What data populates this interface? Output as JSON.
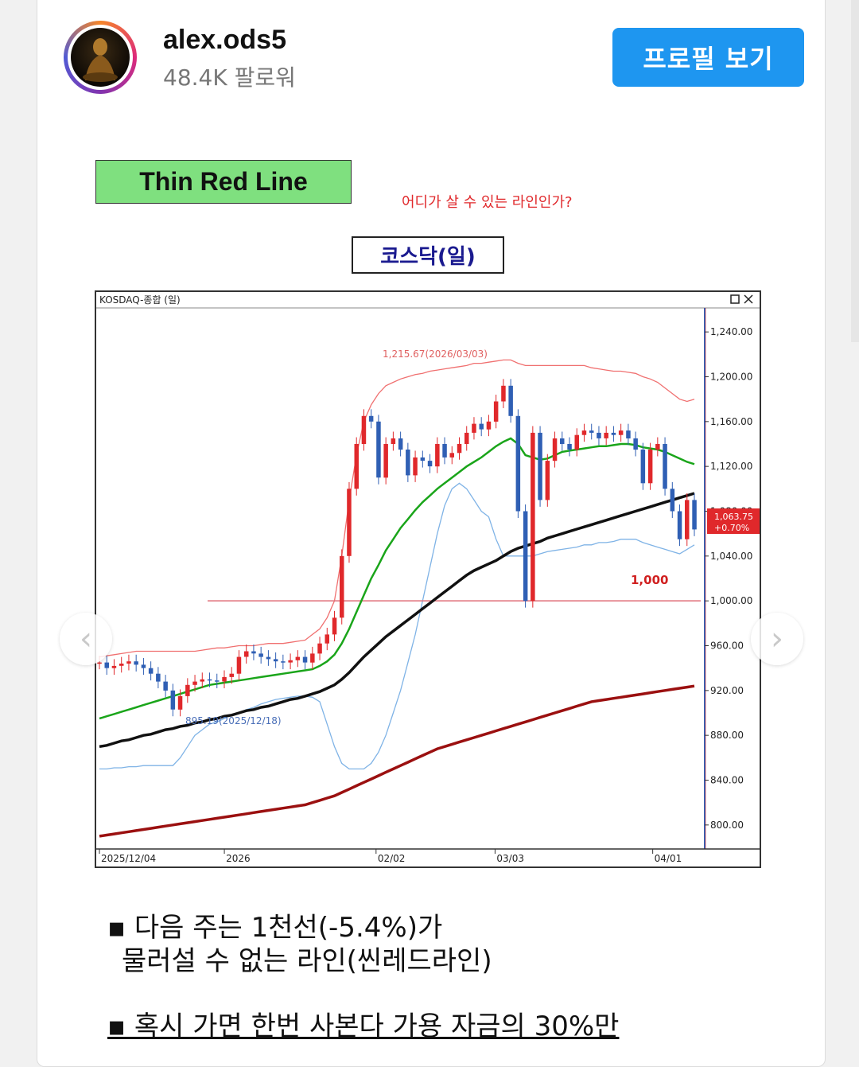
{
  "header": {
    "username": "alex.ods5",
    "followers": "48.4K 팔로워",
    "profile_button": "프로필 보기"
  },
  "post": {
    "title": "Thin Red Line",
    "question": "어디가 살 수 있는 라인인가?",
    "chart_label": "코스닥(일)",
    "bullet1_line1": "▪ 다음 주는 1천선(-5.4%)가",
    "bullet1_line2": "물러설 수 없는 라인(씬레드라인)",
    "bullet2": "▪ 혹시 가면 한번 사본다 가용 자금의 30%만"
  },
  "icons": {
    "prev": "chevron-left-icon",
    "next": "chevron-right-icon",
    "maximize": "maximize-icon",
    "close": "close-icon"
  },
  "chart_data": {
    "type": "line",
    "title": "KOSDAQ-종합 (일)",
    "x_ticks": [
      "2025/12/04",
      "2026",
      "02/02",
      "03/03",
      "04/01"
    ],
    "y_ticks": [
      "1,240.00",
      "1,200.00",
      "1,160.00",
      "1,120.00",
      "1,080.00",
      "1,040.00",
      "1,000.00",
      "960.00",
      "920.00",
      "880.00",
      "840.00",
      "800.00"
    ],
    "ylim": [
      780,
      1260
    ],
    "annotations": {
      "high": "1,215.67(2026/03/03)",
      "low": "895.19(2025/12/18)",
      "level_label": "1,000",
      "last_price": "1,063.75",
      "last_change": "+0.70%"
    },
    "level": 1000,
    "colors": {
      "up": "#e0282b",
      "down": "#2f5fb4",
      "ma20": "#1aa51a",
      "ma60": "#111111",
      "ma120": "#9b1010",
      "bb": "#7fb3e6",
      "bb_upper": "#f07070"
    },
    "close": [
      945,
      940,
      942,
      944,
      946,
      943,
      940,
      935,
      928,
      920,
      903,
      915,
      925,
      928,
      930,
      929,
      928,
      932,
      935,
      950,
      955,
      953,
      950,
      948,
      946,
      945,
      947,
      950,
      945,
      953,
      962,
      970,
      985,
      1040,
      1100,
      1140,
      1165,
      1160,
      1110,
      1140,
      1145,
      1135,
      1112,
      1128,
      1125,
      1120,
      1140,
      1128,
      1132,
      1140,
      1150,
      1158,
      1153,
      1160,
      1178,
      1192,
      1165,
      1080,
      1000,
      1150,
      1090,
      1125,
      1145,
      1140,
      1135,
      1148,
      1152,
      1150,
      1145,
      1150,
      1148,
      1152,
      1145,
      1135,
      1105,
      1135,
      1140,
      1100,
      1080,
      1055,
      1090,
      1063.75
    ],
    "ma20": [
      895,
      897,
      899,
      901,
      903,
      905,
      907,
      909,
      911,
      913,
      915,
      917,
      919,
      921,
      923,
      925,
      926,
      927,
      928,
      929,
      930,
      931,
      932,
      933,
      934,
      935,
      936,
      937,
      938,
      939,
      942,
      946,
      952,
      962,
      975,
      990,
      1005,
      1020,
      1032,
      1045,
      1055,
      1065,
      1073,
      1081,
      1088,
      1094,
      1100,
      1105,
      1110,
      1115,
      1120,
      1124,
      1128,
      1133,
      1138,
      1142,
      1145,
      1140,
      1130,
      1128,
      1126,
      1127,
      1130,
      1133,
      1134,
      1135,
      1136,
      1137,
      1138,
      1138,
      1139,
      1140,
      1140,
      1139,
      1137,
      1136,
      1135,
      1133,
      1130,
      1127,
      1124,
      1122
    ],
    "ma60": [
      870,
      871,
      873,
      875,
      876,
      878,
      880,
      881,
      883,
      885,
      886,
      888,
      889,
      891,
      892,
      894,
      895,
      897,
      898,
      900,
      902,
      903,
      905,
      906,
      908,
      910,
      912,
      913,
      915,
      917,
      919,
      922,
      925,
      930,
      936,
      943,
      950,
      956,
      962,
      968,
      973,
      978,
      983,
      988,
      993,
      998,
      1003,
      1008,
      1013,
      1018,
      1023,
      1027,
      1030,
      1033,
      1036,
      1040,
      1044,
      1047,
      1049,
      1051,
      1053,
      1056,
      1058,
      1060,
      1062,
      1064,
      1066,
      1068,
      1070,
      1072,
      1074,
      1076,
      1078,
      1080,
      1082,
      1084,
      1086,
      1088,
      1090,
      1092,
      1094,
      1096
    ],
    "ma120": [
      790,
      791,
      792,
      793,
      794,
      795,
      796,
      797,
      798,
      799,
      800,
      801,
      802,
      803,
      804,
      805,
      806,
      807,
      808,
      809,
      810,
      811,
      812,
      813,
      814,
      815,
      816,
      817,
      818,
      820,
      822,
      824,
      826,
      829,
      832,
      835,
      838,
      841,
      844,
      847,
      850,
      853,
      856,
      859,
      862,
      865,
      868,
      870,
      872,
      874,
      876,
      878,
      880,
      882,
      884,
      886,
      888,
      890,
      892,
      894,
      896,
      898,
      900,
      902,
      904,
      906,
      908,
      910,
      911,
      912,
      913,
      914,
      915,
      916,
      917,
      918,
      919,
      920,
      921,
      922,
      923,
      924
    ],
    "bb_upper": [
      950,
      951,
      952,
      953,
      954,
      955,
      955,
      955,
      955,
      955,
      955,
      955,
      955,
      955,
      956,
      957,
      958,
      958,
      959,
      960,
      960,
      960,
      961,
      962,
      962,
      962,
      963,
      964,
      965,
      970,
      975,
      985,
      1000,
      1040,
      1090,
      1130,
      1160,
      1175,
      1185,
      1192,
      1195,
      1198,
      1200,
      1202,
      1203,
      1205,
      1206,
      1207,
      1208,
      1209,
      1210,
      1212,
      1212,
      1213,
      1214,
      1215,
      1215,
      1212,
      1210,
      1210,
      1210,
      1210,
      1210,
      1210,
      1210,
      1210,
      1210,
      1208,
      1207,
      1206,
      1205,
      1205,
      1204,
      1203,
      1200,
      1198,
      1195,
      1190,
      1185,
      1180,
      1178,
      1180
    ],
    "bb_lower": [
      850,
      850,
      851,
      851,
      852,
      852,
      853,
      853,
      853,
      853,
      853,
      860,
      870,
      880,
      885,
      890,
      892,
      895,
      898,
      900,
      903,
      905,
      908,
      910,
      912,
      913,
      914,
      915,
      915,
      914,
      910,
      890,
      870,
      855,
      850,
      850,
      850,
      855,
      865,
      880,
      900,
      920,
      945,
      970,
      1000,
      1030,
      1060,
      1085,
      1100,
      1105,
      1100,
      1090,
      1080,
      1075,
      1055,
      1040,
      1040,
      1040,
      1040,
      1040,
      1042,
      1044,
      1045,
      1046,
      1047,
      1048,
      1050,
      1050,
      1052,
      1052,
      1053,
      1055,
      1055,
      1055,
      1052,
      1050,
      1048,
      1046,
      1044,
      1042,
      1046,
      1050
    ]
  }
}
